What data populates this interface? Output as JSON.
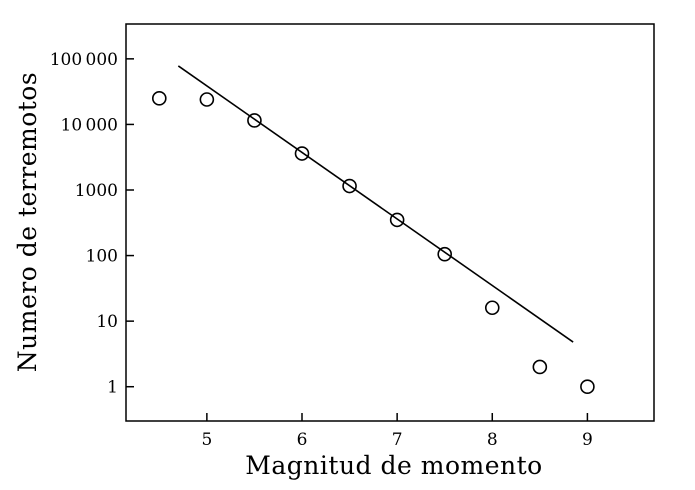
{
  "chart_data": {
    "type": "scatter",
    "title": "",
    "xlabel": "Magnitud de momento",
    "ylabel": "Numero de terremotos",
    "y_scale": "log",
    "xlim": [
      4.15,
      9.7
    ],
    "ylim": [
      0.3,
      340000
    ],
    "grid": false,
    "legend": "none",
    "x_ticks": [
      5,
      6,
      7,
      8,
      9
    ],
    "x_tick_labels": [
      "5",
      "6",
      "7",
      "8",
      "9"
    ],
    "y_ticks": [
      1,
      10,
      100,
      1000,
      10000,
      100000
    ],
    "y_tick_labels": [
      "1",
      "10",
      "100",
      "1000",
      "10 000",
      "100 000"
    ],
    "series": [
      {
        "kind": "points",
        "marker": "open-circle",
        "x": [
          4.5,
          5.0,
          5.5,
          6.0,
          6.5,
          7.0,
          7.5,
          8.0,
          8.5,
          9.0
        ],
        "y": [
          25000,
          24000,
          11500,
          3600,
          1150,
          350,
          105,
          16,
          2,
          1
        ]
      },
      {
        "kind": "line",
        "x": [
          4.7,
          8.85
        ],
        "y": [
          78000,
          4.8
        ]
      }
    ],
    "colors": {
      "ink": "#000000",
      "background": "#ffffff"
    }
  }
}
